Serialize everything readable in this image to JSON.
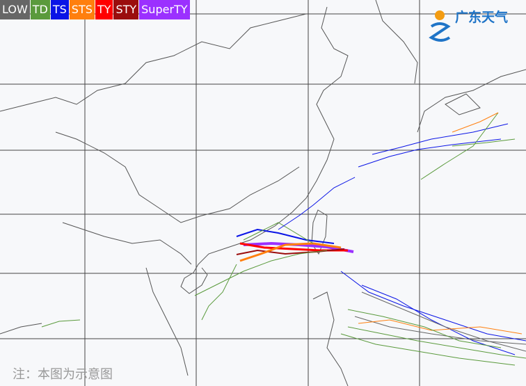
{
  "legend": [
    {
      "label": "LOW",
      "color": "#666666"
    },
    {
      "label": "TD",
      "color": "#5a9a3c"
    },
    {
      "label": "TS",
      "color": "#0a14e6"
    },
    {
      "label": "STS",
      "color": "#ff7f0e"
    },
    {
      "label": "TY",
      "color": "#ff0000"
    },
    {
      "label": "STY",
      "color": "#9b0d0d"
    },
    {
      "label": "SuperTY",
      "color": "#9b30ff"
    }
  ],
  "logo": "广东天气",
  "note": "注：本图为示意图"
}
